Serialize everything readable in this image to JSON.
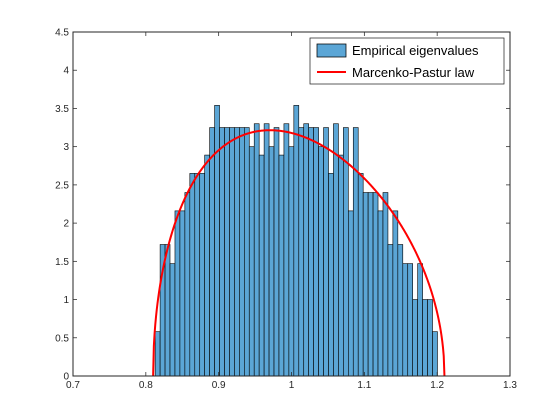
{
  "chart_data": {
    "type": "bar",
    "title": "",
    "xlabel": "",
    "ylabel": "",
    "xlim": [
      0.7,
      1.3
    ],
    "ylim": [
      0,
      4.5
    ],
    "xticks": [
      0.7,
      0.8,
      0.9,
      1.0,
      1.1,
      1.2,
      1.3
    ],
    "xtick_labels": [
      "0.7",
      "0.8",
      "0.9",
      "1",
      "1.1",
      "1.2",
      "1.3"
    ],
    "yticks": [
      0,
      0.5,
      1,
      1.5,
      2,
      2.5,
      3,
      3.5,
      4,
      4.5
    ],
    "ytick_labels": [
      "0",
      "0.5",
      "1",
      "1.5",
      "2",
      "2.5",
      "3",
      "3.5",
      "4",
      "4.5"
    ],
    "grid": false,
    "legend_position": "top-right",
    "series": [
      {
        "name": "Empirical eigenvalues",
        "type": "histogram",
        "color": "#5ba6d6",
        "edge_color": "#000000",
        "bin_start": 0.8128,
        "bin_width": 0.0068,
        "values": [
          0.58,
          1.72,
          1.72,
          1.47,
          2.16,
          2.16,
          2.4,
          2.65,
          2.65,
          2.65,
          2.89,
          3.25,
          3.54,
          3.25,
          3.25,
          3.25,
          3.25,
          3.25,
          3.25,
          3.0,
          3.3,
          2.89,
          3.3,
          3.0,
          3.25,
          2.89,
          3.3,
          3.0,
          3.54,
          3.25,
          3.3,
          3.25,
          3.25,
          3.0,
          3.25,
          2.65,
          3.3,
          2.89,
          3.25,
          2.16,
          3.25,
          2.65,
          2.4,
          2.4,
          2.4,
          2.16,
          2.4,
          1.72,
          2.16,
          1.72,
          1.47,
          1.47,
          1.0,
          1.47,
          1.0,
          1.0,
          0.58
        ]
      },
      {
        "name": "Marcenko-Pastur law",
        "type": "line",
        "color": "#ff0000",
        "support": [
          0.81,
          1.21
        ],
        "curve_scale": 0.01
      }
    ]
  }
}
